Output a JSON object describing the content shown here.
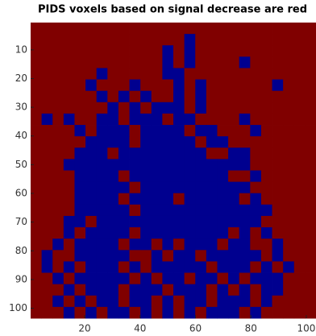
{
  "chart_data": {
    "type": "heatmap",
    "title": "PIDS voxels based on signal decrease are red",
    "xlim": [
      0.5,
      103.5
    ],
    "ylim": [
      0.5,
      103.5
    ],
    "y_reversed": true,
    "xticks": [
      20,
      40,
      60,
      80,
      100
    ],
    "yticks": [
      10,
      20,
      30,
      40,
      50,
      60,
      70,
      80,
      90,
      100
    ],
    "colors": [
      "#00008f",
      "#800000"
    ],
    "z": [
      [
        1,
        1,
        1,
        1,
        1,
        1,
        1,
        1,
        1,
        1,
        1,
        1,
        1,
        1,
        1,
        1,
        1,
        1,
        1,
        1,
        1,
        1,
        1,
        1,
        1,
        1
      ],
      [
        1,
        1,
        1,
        1,
        1,
        1,
        1,
        1,
        1,
        1,
        1,
        1,
        1,
        1,
        0,
        1,
        1,
        1,
        1,
        1,
        1,
        1,
        1,
        1,
        1,
        1
      ],
      [
        1,
        1,
        1,
        1,
        1,
        1,
        1,
        1,
        1,
        1,
        1,
        1,
        0,
        1,
        0,
        1,
        1,
        1,
        1,
        1,
        1,
        1,
        1,
        1,
        1,
        1
      ],
      [
        1,
        1,
        1,
        1,
        1,
        1,
        1,
        1,
        1,
        1,
        1,
        1,
        0,
        1,
        0,
        1,
        1,
        1,
        1,
        0,
        1,
        1,
        1,
        1,
        1,
        1
      ],
      [
        1,
        1,
        1,
        1,
        1,
        1,
        0,
        1,
        1,
        1,
        1,
        1,
        0,
        0,
        1,
        1,
        1,
        1,
        1,
        1,
        1,
        1,
        1,
        1,
        1,
        1
      ],
      [
        1,
        1,
        1,
        1,
        1,
        0,
        1,
        1,
        1,
        0,
        1,
        1,
        1,
        0,
        1,
        0,
        1,
        1,
        1,
        1,
        1,
        1,
        0,
        1,
        1,
        1
      ],
      [
        1,
        1,
        1,
        1,
        1,
        1,
        0,
        1,
        0,
        1,
        0,
        1,
        1,
        0,
        1,
        0,
        1,
        1,
        1,
        1,
        1,
        1,
        1,
        1,
        1,
        1
      ],
      [
        1,
        1,
        1,
        1,
        1,
        1,
        1,
        0,
        1,
        0,
        1,
        0,
        0,
        0,
        1,
        0,
        1,
        1,
        1,
        1,
        1,
        1,
        1,
        1,
        1,
        1
      ],
      [
        1,
        0,
        1,
        0,
        1,
        1,
        0,
        0,
        1,
        0,
        0,
        0,
        1,
        0,
        0,
        1,
        1,
        1,
        1,
        0,
        1,
        1,
        1,
        1,
        1,
        1
      ],
      [
        1,
        1,
        1,
        1,
        0,
        1,
        0,
        0,
        0,
        1,
        0,
        0,
        0,
        0,
        1,
        0,
        0,
        1,
        1,
        1,
        0,
        1,
        1,
        1,
        1,
        1
      ],
      [
        1,
        1,
        1,
        1,
        1,
        0,
        0,
        0,
        0,
        1,
        0,
        0,
        0,
        0,
        0,
        1,
        0,
        0,
        1,
        1,
        1,
        1,
        1,
        1,
        1,
        1
      ],
      [
        1,
        1,
        1,
        1,
        0,
        0,
        0,
        1,
        0,
        0,
        0,
        0,
        0,
        0,
        0,
        0,
        1,
        1,
        0,
        0,
        1,
        1,
        1,
        1,
        1,
        1
      ],
      [
        1,
        1,
        1,
        0,
        0,
        0,
        0,
        0,
        0,
        0,
        0,
        0,
        0,
        0,
        0,
        0,
        0,
        0,
        0,
        0,
        1,
        1,
        1,
        1,
        1,
        1
      ],
      [
        1,
        1,
        1,
        1,
        0,
        0,
        0,
        0,
        1,
        0,
        0,
        0,
        0,
        0,
        0,
        0,
        0,
        0,
        1,
        1,
        0,
        1,
        1,
        1,
        1,
        1
      ],
      [
        1,
        1,
        1,
        1,
        0,
        0,
        0,
        0,
        0,
        1,
        0,
        0,
        0,
        0,
        0,
        0,
        0,
        0,
        0,
        0,
        1,
        1,
        1,
        1,
        1,
        1
      ],
      [
        1,
        1,
        1,
        1,
        0,
        0,
        0,
        0,
        1,
        0,
        0,
        0,
        0,
        1,
        0,
        0,
        0,
        0,
        0,
        1,
        0,
        1,
        1,
        1,
        1,
        1
      ],
      [
        1,
        1,
        1,
        1,
        0,
        0,
        0,
        0,
        0,
        1,
        0,
        0,
        0,
        0,
        0,
        0,
        0,
        0,
        0,
        0,
        0,
        0,
        1,
        1,
        1,
        1
      ],
      [
        1,
        1,
        1,
        0,
        0,
        1,
        0,
        0,
        0,
        0,
        0,
        0,
        0,
        0,
        0,
        0,
        0,
        0,
        0,
        0,
        0,
        1,
        1,
        1,
        1,
        1
      ],
      [
        1,
        1,
        1,
        0,
        1,
        0,
        0,
        0,
        0,
        1,
        0,
        0,
        0,
        0,
        0,
        0,
        0,
        0,
        1,
        0,
        1,
        0,
        1,
        1,
        1,
        1
      ],
      [
        1,
        1,
        0,
        1,
        0,
        0,
        0,
        0,
        1,
        0,
        0,
        1,
        0,
        1,
        0,
        0,
        0,
        1,
        0,
        0,
        1,
        1,
        0,
        1,
        1,
        1
      ],
      [
        1,
        0,
        1,
        1,
        0,
        0,
        0,
        0,
        0,
        1,
        1,
        0,
        1,
        0,
        0,
        1,
        0,
        0,
        0,
        0,
        0,
        1,
        0,
        1,
        1,
        1
      ],
      [
        1,
        0,
        1,
        0,
        1,
        0,
        0,
        0,
        1,
        0,
        1,
        0,
        0,
        0,
        0,
        0,
        1,
        0,
        0,
        0,
        1,
        0,
        1,
        0,
        1,
        1
      ],
      [
        1,
        1,
        0,
        1,
        0,
        0,
        0,
        0,
        0,
        1,
        0,
        1,
        0,
        0,
        1,
        0,
        0,
        1,
        0,
        1,
        0,
        0,
        0,
        1,
        1,
        1
      ],
      [
        1,
        1,
        1,
        0,
        1,
        0,
        0,
        0,
        1,
        0,
        0,
        0,
        1,
        0,
        0,
        0,
        1,
        0,
        1,
        0,
        1,
        0,
        0,
        1,
        1,
        1
      ],
      [
        1,
        1,
        0,
        1,
        0,
        1,
        0,
        0,
        1,
        0,
        0,
        1,
        0,
        1,
        0,
        0,
        1,
        0,
        0,
        0,
        1,
        0,
        1,
        1,
        1,
        1
      ],
      [
        1,
        1,
        1,
        0,
        1,
        0,
        1,
        0,
        0,
        1,
        0,
        1,
        0,
        1,
        0,
        1,
        0,
        0,
        0,
        1,
        0,
        1,
        1,
        1,
        1,
        1
      ]
    ]
  }
}
